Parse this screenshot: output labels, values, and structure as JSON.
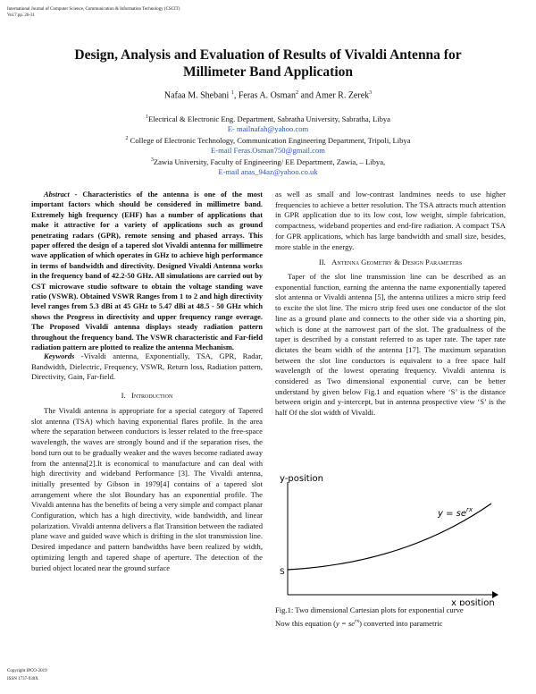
{
  "header": {
    "journal": "International Journal of Computer Science, Communication & Information Technology (CSCIT)",
    "volume": "Vol.7 pp. 26-31"
  },
  "title": "Design, Analysis and Evaluation of Results of Vivaldi Antenna for Millimeter Band Application",
  "authors": [
    {
      "name": "Nafaa M. Shebani ",
      "sup": "1"
    },
    {
      "name": ", Feras  A.  Osman",
      "sup": "2"
    },
    {
      "name": " and Amer R. Zerek",
      "sup": "3"
    }
  ],
  "affiliations": [
    {
      "sup": "1",
      "text": "Electrical & Electronic Eng. Department, Sabratha University, Sabratha, Libya",
      "email": "E- mailnafah@yahoo.com"
    },
    {
      "sup": "2",
      "text": " College of Electronic Technology, Communication Engineering Department, Tripoli, Libya",
      "email": "E-mail Feras.Osman750@gmail.com"
    },
    {
      "sup": "3",
      "text": "Zawia University, Faculty of Engineering/ EE Department, Zawia, – Libya,",
      "email": "E-mail anas_94az@yahoo.co.uk"
    }
  ],
  "abstract": {
    "label": "Abstract -",
    "text": " Characteristics of the antenna is one of the most important factors which should be considered in millimetre band. Extremely high frequency (EHF) has a number of applications that make it attractive for a variety of applications such as ground penetrating radars (GPR), remote sensing and phased arrays. This paper offered the design of a tapered slot Vivaldi antenna for millimetre wave application of which operates in GHz to achieve high performance in terms of bandwidth and directivity. Designed Vivaldi Antenna works in the frequency band of 42.2-50 GHz. All simulations are carried out by CST microwave studio software to obtain the voltage standing wave ratio (VSWR). Obtained VSWR Ranges from 1 to 2 and high directivity level ranges from 5.3 dBi at 45 GHz to 5.47 dBi at 48.5 - 50 GHz which shows the Progress in directivity and upper frequency range overage. The Proposed Vivaldi antenna displays steady radiation pattern throughout the frequency band. The VSWR characteristic and Far-field radiation pattern are plotted to realize the antenna Mechanism."
  },
  "keywords": {
    "label": "Keywords",
    "text": " -Vivaldi antenna, Exponentially, TSA, GPR, Radar, Bandwidth, Dielectric, Frequency, VSWR, Return loss, Radiation pattern, Directivity, Gain, Far-field."
  },
  "sections": [
    {
      "number": "I.",
      "title": "Introduction",
      "paragraphs": [
        "The Vivaldi antenna is appropriate for a special category of Tapered slot antenna (TSA) which having exponential flares profile. In the area where the separation between conductors is lesser related to the free-space wavelength, the waves are strongly bound and if the separation rises, the bond turn out to be gradually weaker and the waves become radiated away from the antenna[2].It is economical to manufacture and can deal with high directivity and wideband Performance [3]. The Vivaldi antenna, initially presented by Gibson in 1979[4] contains of a tapered slot arrangement where the slot Boundary has an exponential profile. The Vivaldi antenna has the benefits of being a very simple and compact planar Configuration, which has a high directivity, wide bandwidth, and linear polarization. Vivaldi antenna delivers a flat Transition between the radiated plane wave and guided wave which is drifting in the slot transmission line. Desired impedance and pattern bandwidths have been realized by width, optimizing length and tapered shape of aperture. The detection of the buried object located near the ground surface",
        "as well as small and low-contrast landmines needs to use higher frequencies to achieve a better resolution. The TSA attracts much attention in GPR application due to its low cost, low weight, simple fabrication, compactness, wideband properties and end-fire radiation. A compact TSA for GPR applications, which has large bandwidth and small size, besides, more stable in the energy."
      ]
    },
    {
      "number": "II.",
      "title": "Antenna Geometry & Design Parameters",
      "paragraphs": [
        "Taper of the slot line transmission line can be described as an exponential function, earning the antenna the name exponentially tapered slot antenna or Vivaldi antenna [5], the antenna utilizes a micro strip feed to excite the slot line. The micro strip feed uses one conductor of the slot line as a ground plane and connects to the other side via a shorting pin, which is done at the narrowest part of the slot. The gradualness of the taper is described by a constant referred to as taper rate. The taper rate dictates the beam width of the antenna [17]. The maximum separation between the slot line conductors is equivalent to a free space half wavelength of the lowest operating frequency. Vivaldi antenna is considered as Two dimensional exponential curve, can be better understand by given below Fig.1 and equation where ‘S’ is the distance between origin and y-intercept, but in antenna prospective view ‘S’ is the half Of the slot width of Vivaldi."
      ]
    }
  ],
  "figure": {
    "y_label": "y-position",
    "x_label": "x position",
    "equation": "y = se",
    "equation_exp": "rx",
    "intercept": "S",
    "caption": "Fig.1: Two dimensional Cartesian plots for exponential curve"
  },
  "closing": {
    "before": "Now this equation (",
    "equation": "y = se",
    "exp": "rx",
    "after": ") converted into parametric"
  },
  "footer": {
    "copyright": "Copyright IPCO-2019",
    "issn": "ISSN 1737-930X"
  }
}
